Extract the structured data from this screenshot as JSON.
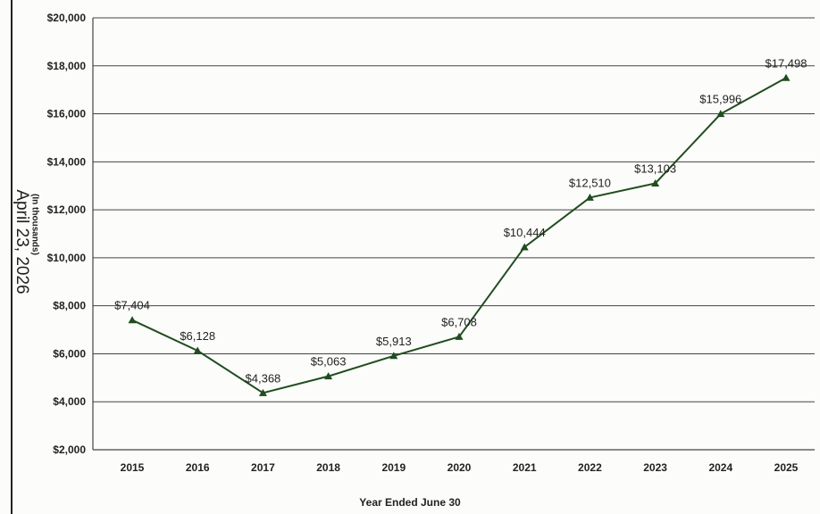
{
  "stamp_text": "April 23, 2026",
  "chart_data": {
    "type": "line",
    "title": "",
    "xlabel": "Year Ended June 30",
    "ylabel": "(In thousands)",
    "categories": [
      "2015",
      "2016",
      "2017",
      "2018",
      "2019",
      "2020",
      "2021",
      "2022",
      "2023",
      "2024",
      "2025"
    ],
    "series": [
      {
        "values": [
          7404,
          6128,
          4368,
          5063,
          5913,
          6708,
          10444,
          12510,
          13103,
          15996,
          17498
        ],
        "labels": [
          "$7,404",
          "$6,128",
          "$4,368",
          "$5,063",
          "$5,913",
          "$6,708",
          "$10,444",
          "$12,510",
          "$13,103",
          "$15,996",
          "$17,498"
        ]
      }
    ],
    "ylim": [
      2000,
      20000
    ],
    "yticks": [
      2000,
      4000,
      6000,
      8000,
      10000,
      12000,
      14000,
      16000,
      18000,
      20000
    ],
    "ytick_labels": [
      "$2,000",
      "$4,000",
      "$6,000",
      "$8,000",
      "$10,000",
      "$12,000",
      "$14,000",
      "$16,000",
      "$18,000",
      "$20,000"
    ],
    "grid": true,
    "legend": "none",
    "line_color": "#1f4d1f",
    "marker": "triangle"
  }
}
